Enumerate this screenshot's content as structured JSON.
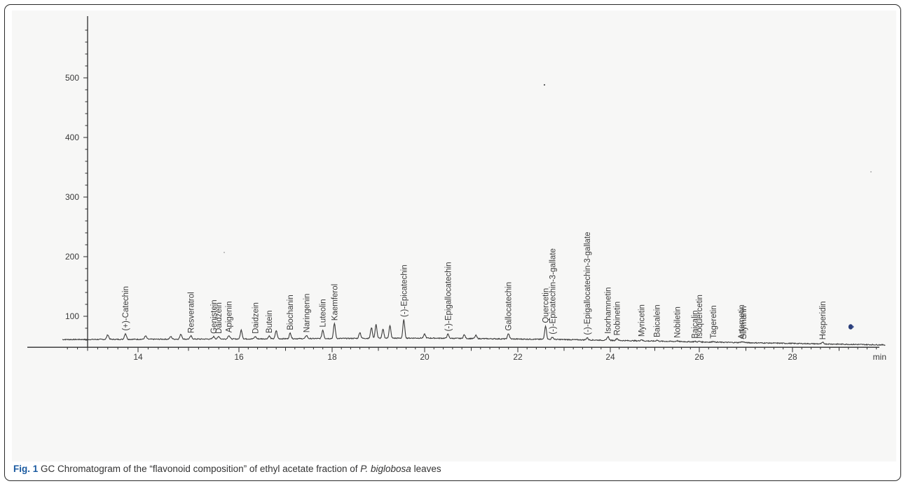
{
  "caption": {
    "label": "Fig. 1",
    "text_before": " GC Chromatogram of the “flavonoid composition” of ethyl acetate fraction of ",
    "species": "P. biglobosa",
    "text_after": " leaves"
  },
  "colors": {
    "trace": "#3a3a3a",
    "axis": "#2e2e2e",
    "caption_label": "#1a5aa0",
    "plot_background": "#f7f7f6"
  },
  "chart_data": {
    "type": "line",
    "title": "",
    "xlabel": "min",
    "ylabel": "",
    "xlim": [
      12.5,
      30.0
    ],
    "ylim": [
      48,
      585
    ],
    "x_ticks": [
      14,
      16,
      18,
      20,
      22,
      24,
      26,
      28
    ],
    "y_ticks": [
      100,
      200,
      300,
      400,
      500
    ],
    "grid": false,
    "baseline": [
      [
        12.5,
        61
      ],
      [
        16,
        62
      ],
      [
        20,
        63.5
      ],
      [
        23,
        61
      ],
      [
        26,
        57
      ],
      [
        30,
        52
      ]
    ],
    "peaks": [
      {
        "x": 13.4,
        "y": 69
      },
      {
        "x": 13.75,
        "y": 71,
        "label": "(+)-Catechin"
      },
      {
        "x": 14.15,
        "y": 67
      },
      {
        "x": 14.65,
        "y": 66
      },
      {
        "x": 14.85,
        "y": 70
      },
      {
        "x": 15.05,
        "y": 67,
        "label": "Resveratrol"
      },
      {
        "x": 15.5,
        "y": 66,
        "label": "Genistein"
      },
      {
        "x": 15.6,
        "y": 66,
        "label": "Daidzein"
      },
      {
        "x": 15.8,
        "y": 68,
        "label": "Apigenin"
      },
      {
        "x": 16.05,
        "y": 77
      },
      {
        "x": 16.35,
        "y": 66,
        "label": "Daidzein"
      },
      {
        "x": 16.65,
        "y": 67,
        "label": "Butein"
      },
      {
        "x": 16.8,
        "y": 76
      },
      {
        "x": 17.1,
        "y": 72,
        "label": "Biochanin"
      },
      {
        "x": 17.45,
        "y": 68,
        "label": "Naringenin"
      },
      {
        "x": 17.8,
        "y": 77,
        "label": "Luteolin"
      },
      {
        "x": 18.05,
        "y": 88,
        "label": "Kaemferol"
      },
      {
        "x": 18.6,
        "y": 73
      },
      {
        "x": 18.85,
        "y": 81
      },
      {
        "x": 18.95,
        "y": 86
      },
      {
        "x": 19.1,
        "y": 78
      },
      {
        "x": 19.25,
        "y": 84
      },
      {
        "x": 19.55,
        "y": 94,
        "label": "(-)-Epicatechin"
      },
      {
        "x": 20.0,
        "y": 70
      },
      {
        "x": 20.5,
        "y": 70,
        "label": "(-)-Epigallocatechin"
      },
      {
        "x": 20.85,
        "y": 69
      },
      {
        "x": 21.1,
        "y": 68
      },
      {
        "x": 21.8,
        "y": 71,
        "label": "Gallocatechin"
      },
      {
        "x": 22.6,
        "y": 84,
        "label": "Quercetin"
      },
      {
        "x": 22.75,
        "y": 65,
        "label": "(-)-Epicatechin-3-gallate"
      },
      {
        "x": 23.5,
        "y": 64,
        "label": "(-)-Epigallocatechin-3-gallate"
      },
      {
        "x": 23.95,
        "y": 66,
        "label": "Isorhamnetin"
      },
      {
        "x": 24.15,
        "y": 63,
        "label": "Robinetin"
      },
      {
        "x": 24.7,
        "y": 61,
        "label": "Myricetin"
      },
      {
        "x": 25.05,
        "y": 60,
        "label": "Baicalein"
      },
      {
        "x": 25.5,
        "y": 59,
        "label": "Nobiletin"
      },
      {
        "x": 25.9,
        "y": 58,
        "label": "Baicalin"
      },
      {
        "x": 26.0,
        "y": 58,
        "label": "Isoquercetin"
      },
      {
        "x": 26.3,
        "y": 58,
        "label": "Tageretin"
      },
      {
        "x": 26.9,
        "y": 57,
        "label": "Artemetin"
      },
      {
        "x": 26.95,
        "y": 57,
        "label": "Silymarin"
      },
      {
        "x": 28.65,
        "y": 56,
        "label": "Hesperidin"
      }
    ]
  }
}
